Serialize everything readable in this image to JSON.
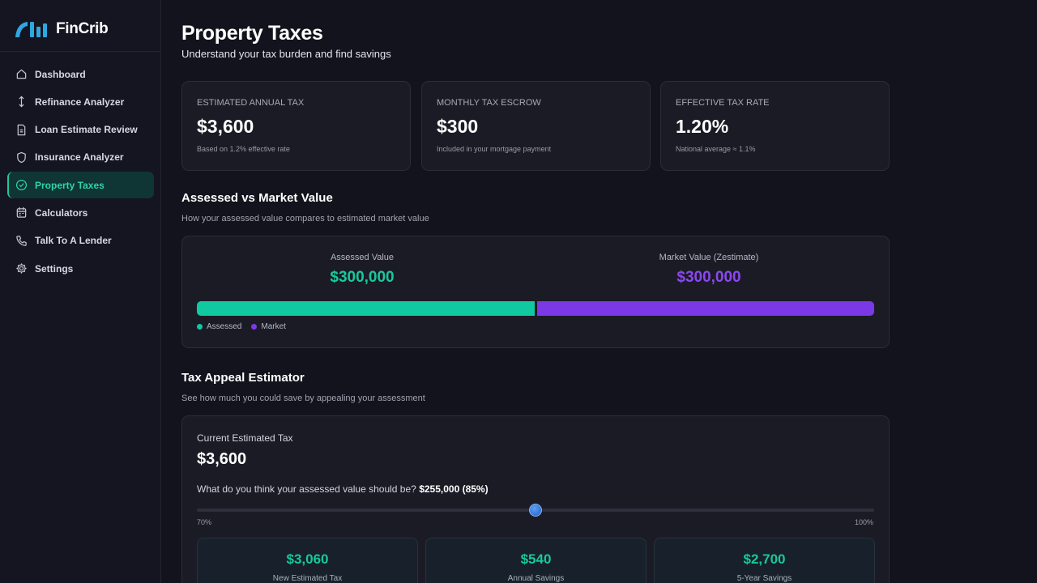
{
  "brand": {
    "name": "FinCrib"
  },
  "sidebar": {
    "items": [
      {
        "label": "Dashboard",
        "icon": "home-icon",
        "active": false
      },
      {
        "label": "Refinance Analyzer",
        "icon": "arrows-vertical-icon",
        "active": false
      },
      {
        "label": "Loan Estimate Review",
        "icon": "document-icon",
        "active": false
      },
      {
        "label": "Insurance Analyzer",
        "icon": "shield-icon",
        "active": false
      },
      {
        "label": "Property Taxes",
        "icon": "check-circle-icon",
        "active": true
      },
      {
        "label": "Calculators",
        "icon": "calendar-icon",
        "active": false
      },
      {
        "label": "Talk To A Lender",
        "icon": "phone-icon",
        "active": false
      },
      {
        "label": "Settings",
        "icon": "gear-icon",
        "active": false
      }
    ]
  },
  "page": {
    "title": "Property Taxes",
    "subtitle": "Understand your tax burden and find savings"
  },
  "stats": [
    {
      "label": "ESTIMATED ANNUAL TAX",
      "value": "$3,600",
      "note": "Based on 1.2% effective rate"
    },
    {
      "label": "MONTHLY TAX ESCROW",
      "value": "$300",
      "note": "Included in your mortgage payment"
    },
    {
      "label": "EFFECTIVE TAX RATE",
      "value": "1.20%",
      "note": "National average ≈ 1.1%"
    }
  ],
  "comparison": {
    "title": "Assessed vs Market Value",
    "subtitle": "How your assessed value compares to estimated market value",
    "assessed_label": "Assessed Value",
    "assessed_value": "$300,000",
    "market_label": "Market Value (Zestimate)",
    "market_value": "$300,000",
    "assessed_share": 0.5,
    "legend_assessed": "Assessed",
    "legend_market": "Market",
    "assessed_color": "#10c9a0",
    "market_color": "#7b39e6"
  },
  "appeal": {
    "title": "Tax Appeal Estimator",
    "subtitle": "See how much you could save by appealing your assessment",
    "current_label": "Current Estimated Tax",
    "current_value": "$3,600",
    "question": "What do you think your assessed value should be?",
    "question_value": "$255,000 (85%)",
    "slider_min_label": "70%",
    "slider_max_label": "100%",
    "slider_percent": 85,
    "results": [
      {
        "value": "$3,060",
        "label": "New Estimated Tax"
      },
      {
        "value": "$540",
        "label": "Annual Savings"
      },
      {
        "value": "$2,700",
        "label": "5-Year Savings"
      }
    ]
  }
}
